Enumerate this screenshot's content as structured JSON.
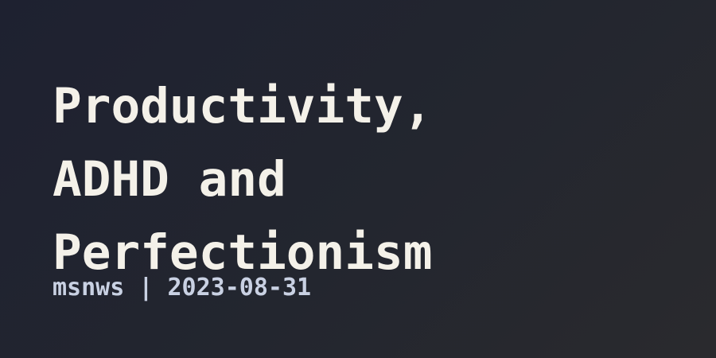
{
  "post": {
    "title_lines": [
      "Productivity,",
      "ADHD and",
      "Perfectionism"
    ],
    "author": "msnws",
    "separator": "|",
    "date": "2023-08-31"
  },
  "colors": {
    "background": "#1e2130",
    "title": "#f4f1e9",
    "meta": "#c9d1e3"
  }
}
